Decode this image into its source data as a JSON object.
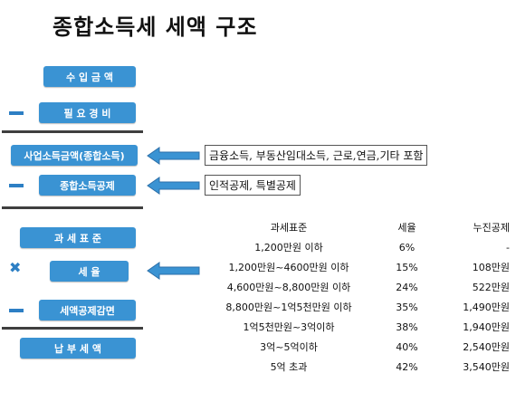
{
  "title": "종합소득세 세액 구조",
  "boxes": {
    "income": "수 입 금 액",
    "expenses": "필 요 경 비",
    "business_income": "사업소득금액(종합소득)",
    "income_deduction": "종합소득공제",
    "tax_base": "과 세 표 준",
    "tax_rate": "세 율",
    "tax_credit": "세액공제감면",
    "tax_payable": "납 부 세 액"
  },
  "notes": {
    "business_income": "금융소득, 부동산임대소득, 근로,연금,기타 포함",
    "income_deduction": "인적공제, 특별공제"
  },
  "colors": {
    "box": "#3a93d3",
    "operator": "#2d7fc4",
    "rule": "#3f3f3f"
  },
  "table": {
    "headers": [
      "과세표준",
      "세율",
      "누진공제"
    ],
    "rows": [
      [
        "1,200만원 이하",
        "6%",
        "-"
      ],
      [
        "1,200만원~4600만원 이하",
        "15%",
        "108만원"
      ],
      [
        "4,600만원~8,800만원 이하",
        "24%",
        "522만원"
      ],
      [
        "8,800만원~1억5천만원 이하",
        "35%",
        "1,490만원"
      ],
      [
        "1억5천만원~3억이하",
        "38%",
        "1,940만원"
      ],
      [
        "3억~5억이하",
        "40%",
        "2,540만원"
      ],
      [
        "5억 초과",
        "42%",
        "3,540만원"
      ]
    ]
  }
}
